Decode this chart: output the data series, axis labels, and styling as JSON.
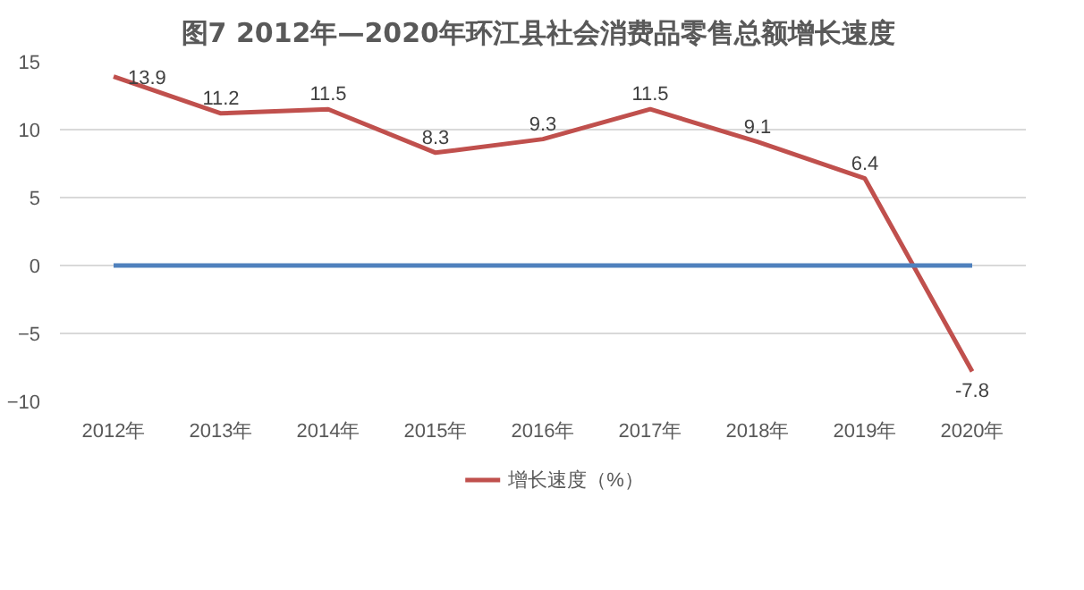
{
  "chart_data": {
    "type": "line",
    "title": "图7  2012年—2020年环江县社会消费品零售总额增长速度",
    "categories": [
      "2012年",
      "2013年",
      "2014年",
      "2015年",
      "2016年",
      "2017年",
      "2018年",
      "2019年",
      "2020年"
    ],
    "series": [
      {
        "name": "增长速度（%）",
        "color": "#c0504d",
        "values": [
          13.9,
          11.2,
          11.5,
          8.3,
          9.3,
          11.5,
          9.1,
          6.4,
          -7.8
        ],
        "data_labels": true
      },
      {
        "color": "#4f81bd",
        "values": [
          0,
          0,
          0,
          0,
          0,
          0,
          0,
          0,
          0
        ]
      }
    ],
    "ylim": [
      -10,
      15
    ],
    "yticks": [
      -10,
      -5,
      0,
      5,
      10,
      15
    ],
    "grid": "y",
    "legend": "bottom",
    "marker": "none",
    "line_style": "solid"
  }
}
